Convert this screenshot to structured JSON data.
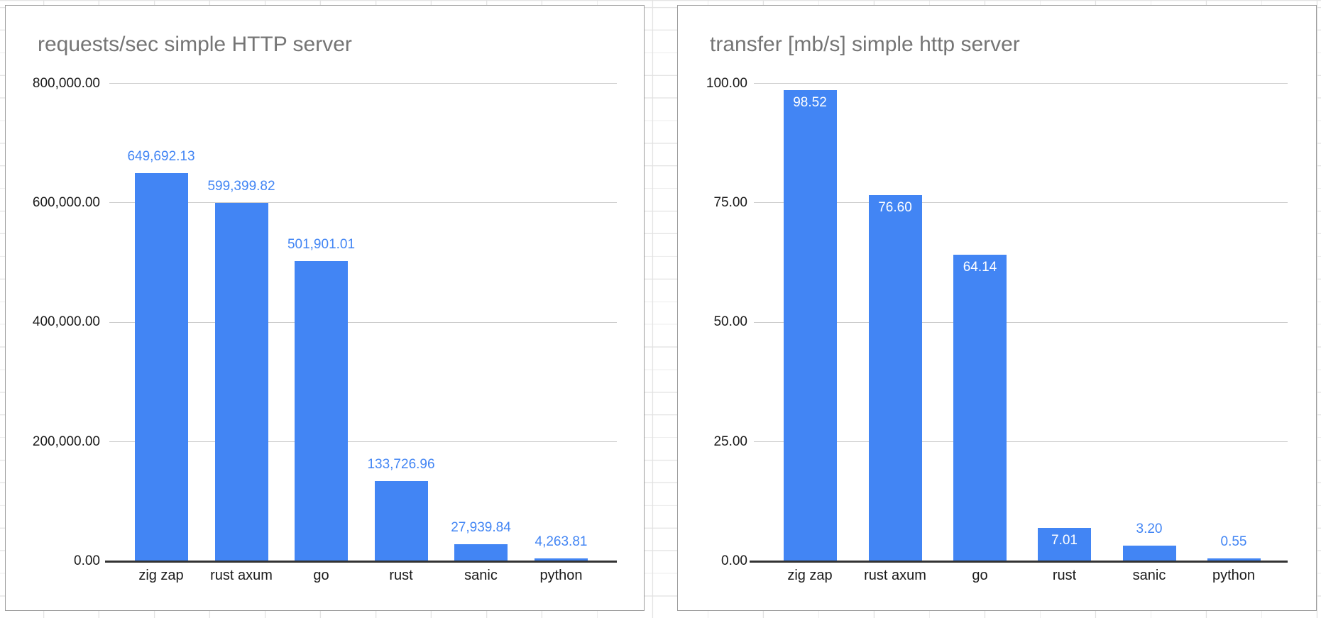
{
  "app_context": "spreadsheet-with-embedded-charts",
  "colors": {
    "bar": "#4285f4",
    "annotation_outside": "#4285f4",
    "annotation_inside": "#ffffff",
    "title_text": "#757575",
    "axis_text": "#1a1a1a",
    "gridline": "#cccccc",
    "baseline": "#333333",
    "chart_border": "#9b9b9b",
    "sheet_gridline": "#e2e2e2",
    "chart_background": "#ffffff"
  },
  "chart_data": [
    {
      "type": "bar",
      "title": "requests/sec simple HTTP server",
      "categories": [
        "zig zap",
        "rust axum",
        "go",
        "rust",
        "sanic",
        "python"
      ],
      "values": [
        649692.13,
        599399.82,
        501901.01,
        133726.96,
        27939.84,
        4263.81
      ],
      "value_labels": [
        "649,692.13",
        "599,399.82",
        "501,901.01",
        "133,726.96",
        "27,939.84",
        "4,263.81"
      ],
      "label_placement": [
        "above",
        "above",
        "above",
        "above",
        "above",
        "above"
      ],
      "ylabel": "",
      "xlabel": "",
      "ylim": [
        0,
        800000
      ],
      "y_tick_values": [
        800000,
        600000,
        400000,
        200000,
        0
      ],
      "y_tick_labels": [
        "800,000.00",
        "600,000.00",
        "400,000.00",
        "200,000.00",
        "0.00"
      ],
      "grid": "horizontal",
      "legend": "none"
    },
    {
      "type": "bar",
      "title": "transfer [mb/s] simple http server",
      "categories": [
        "zig zap",
        "rust axum",
        "go",
        "rust",
        "sanic",
        "python"
      ],
      "values": [
        98.52,
        76.6,
        64.14,
        7.01,
        3.2,
        0.55
      ],
      "value_labels": [
        "98.52",
        "76.60",
        "64.14",
        "7.01",
        "3.20",
        "0.55"
      ],
      "label_placement": [
        "inside",
        "inside",
        "inside",
        "inside",
        "above",
        "above"
      ],
      "ylabel": "",
      "xlabel": "",
      "ylim": [
        0,
        100
      ],
      "y_tick_values": [
        100,
        75,
        50,
        25,
        0
      ],
      "y_tick_labels": [
        "100.00",
        "75.00",
        "50.00",
        "25.00",
        "0.00"
      ],
      "grid": "horizontal",
      "legend": "none"
    }
  ]
}
